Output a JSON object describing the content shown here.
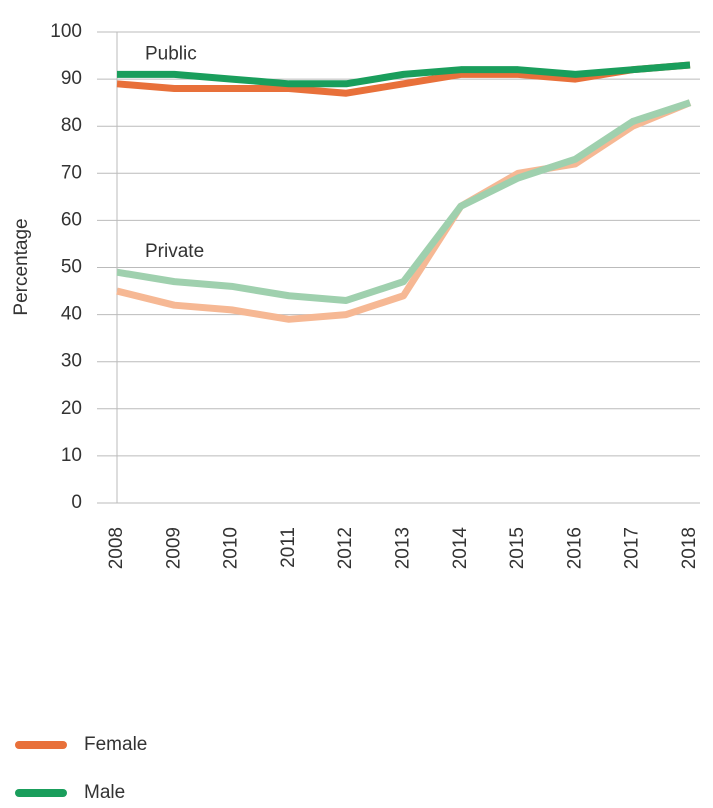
{
  "chart_data": {
    "type": "line",
    "ylabel": "Percentage",
    "categories": [
      "2008",
      "2009",
      "2010",
      "2011",
      "2012",
      "2013",
      "2014",
      "2015",
      "2016",
      "2017",
      "2018"
    ],
    "groups": [
      {
        "label": "Private",
        "series": [
          {
            "color": "#f6b894",
            "values": [
              45,
              42,
              41,
              39,
              40,
              44,
              63,
              70,
              72,
              80,
              85
            ]
          },
          {
            "color": "#9fd0ae",
            "values": [
              49,
              47,
              46,
              44,
              43,
              47,
              63,
              69,
              73,
              81,
              85
            ]
          }
        ]
      },
      {
        "label": "Public",
        "series": [
          {
            "color": "#e8703a",
            "values": [
              89,
              88,
              88,
              88,
              87,
              89,
              91,
              91,
              90,
              92,
              93
            ]
          },
          {
            "color": "#1a9e5c",
            "values": [
              91,
              91,
              90,
              89,
              89,
              91,
              92,
              92,
              91,
              92,
              93
            ]
          }
        ]
      }
    ],
    "legend": [
      {
        "name": "Female",
        "color": "#e8703a"
      },
      {
        "name": "Male",
        "color": "#1a9e5c"
      }
    ],
    "ylim": [
      0,
      100
    ],
    "yticks": [
      0,
      10,
      20,
      30,
      40,
      50,
      60,
      70,
      80,
      90,
      100
    ],
    "grid": true
  }
}
